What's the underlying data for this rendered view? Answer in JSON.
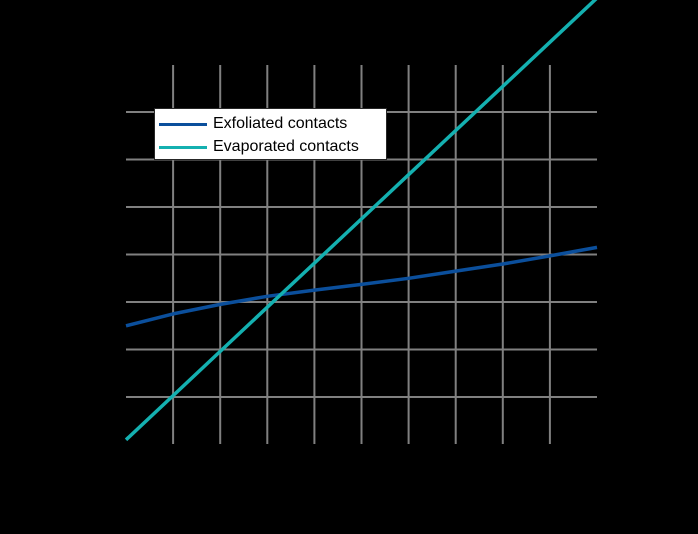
{
  "chart_data": {
    "type": "line",
    "title": "",
    "xlabel": "",
    "ylabel": "",
    "note": "Axis tick labels are not visible (rendered black on black); values expressed in grid units. X: 0..10 (left edge 0, right edge 10), Y: 0..7 (bottom gridline area).",
    "xlim": [
      0,
      10
    ],
    "ylim": [
      -1,
      7.8
    ],
    "grid": true,
    "legend_position": "upper-left",
    "x": [
      0,
      1,
      2,
      3,
      4,
      5,
      6,
      7,
      8,
      9,
      10
    ],
    "series": [
      {
        "name": "Exfoliated contacts",
        "color": "#0b4f9c",
        "values": [
          2.5,
          2.75,
          2.95,
          3.12,
          3.25,
          3.37,
          3.5,
          3.65,
          3.8,
          3.97,
          4.15
        ]
      },
      {
        "name": "Evaporated contacts",
        "color": "#14b0b0",
        "values": [
          0.1,
          1.03,
          1.96,
          2.89,
          3.82,
          4.75,
          5.68,
          6.61,
          7.54,
          8.47,
          9.4
        ]
      }
    ],
    "x_gridlines": [
      1,
      2,
      3,
      4,
      5,
      6,
      7,
      8,
      9
    ],
    "y_gridlines": [
      1,
      2,
      3,
      4,
      5,
      6,
      7
    ]
  },
  "legend": {
    "items": [
      {
        "label": "Exfoliated contacts",
        "color": "#0b4f9c"
      },
      {
        "label": "Evaporated contacts",
        "color": "#14b0b0"
      }
    ]
  },
  "colors": {
    "background": "#000000",
    "grid": "#808080"
  }
}
